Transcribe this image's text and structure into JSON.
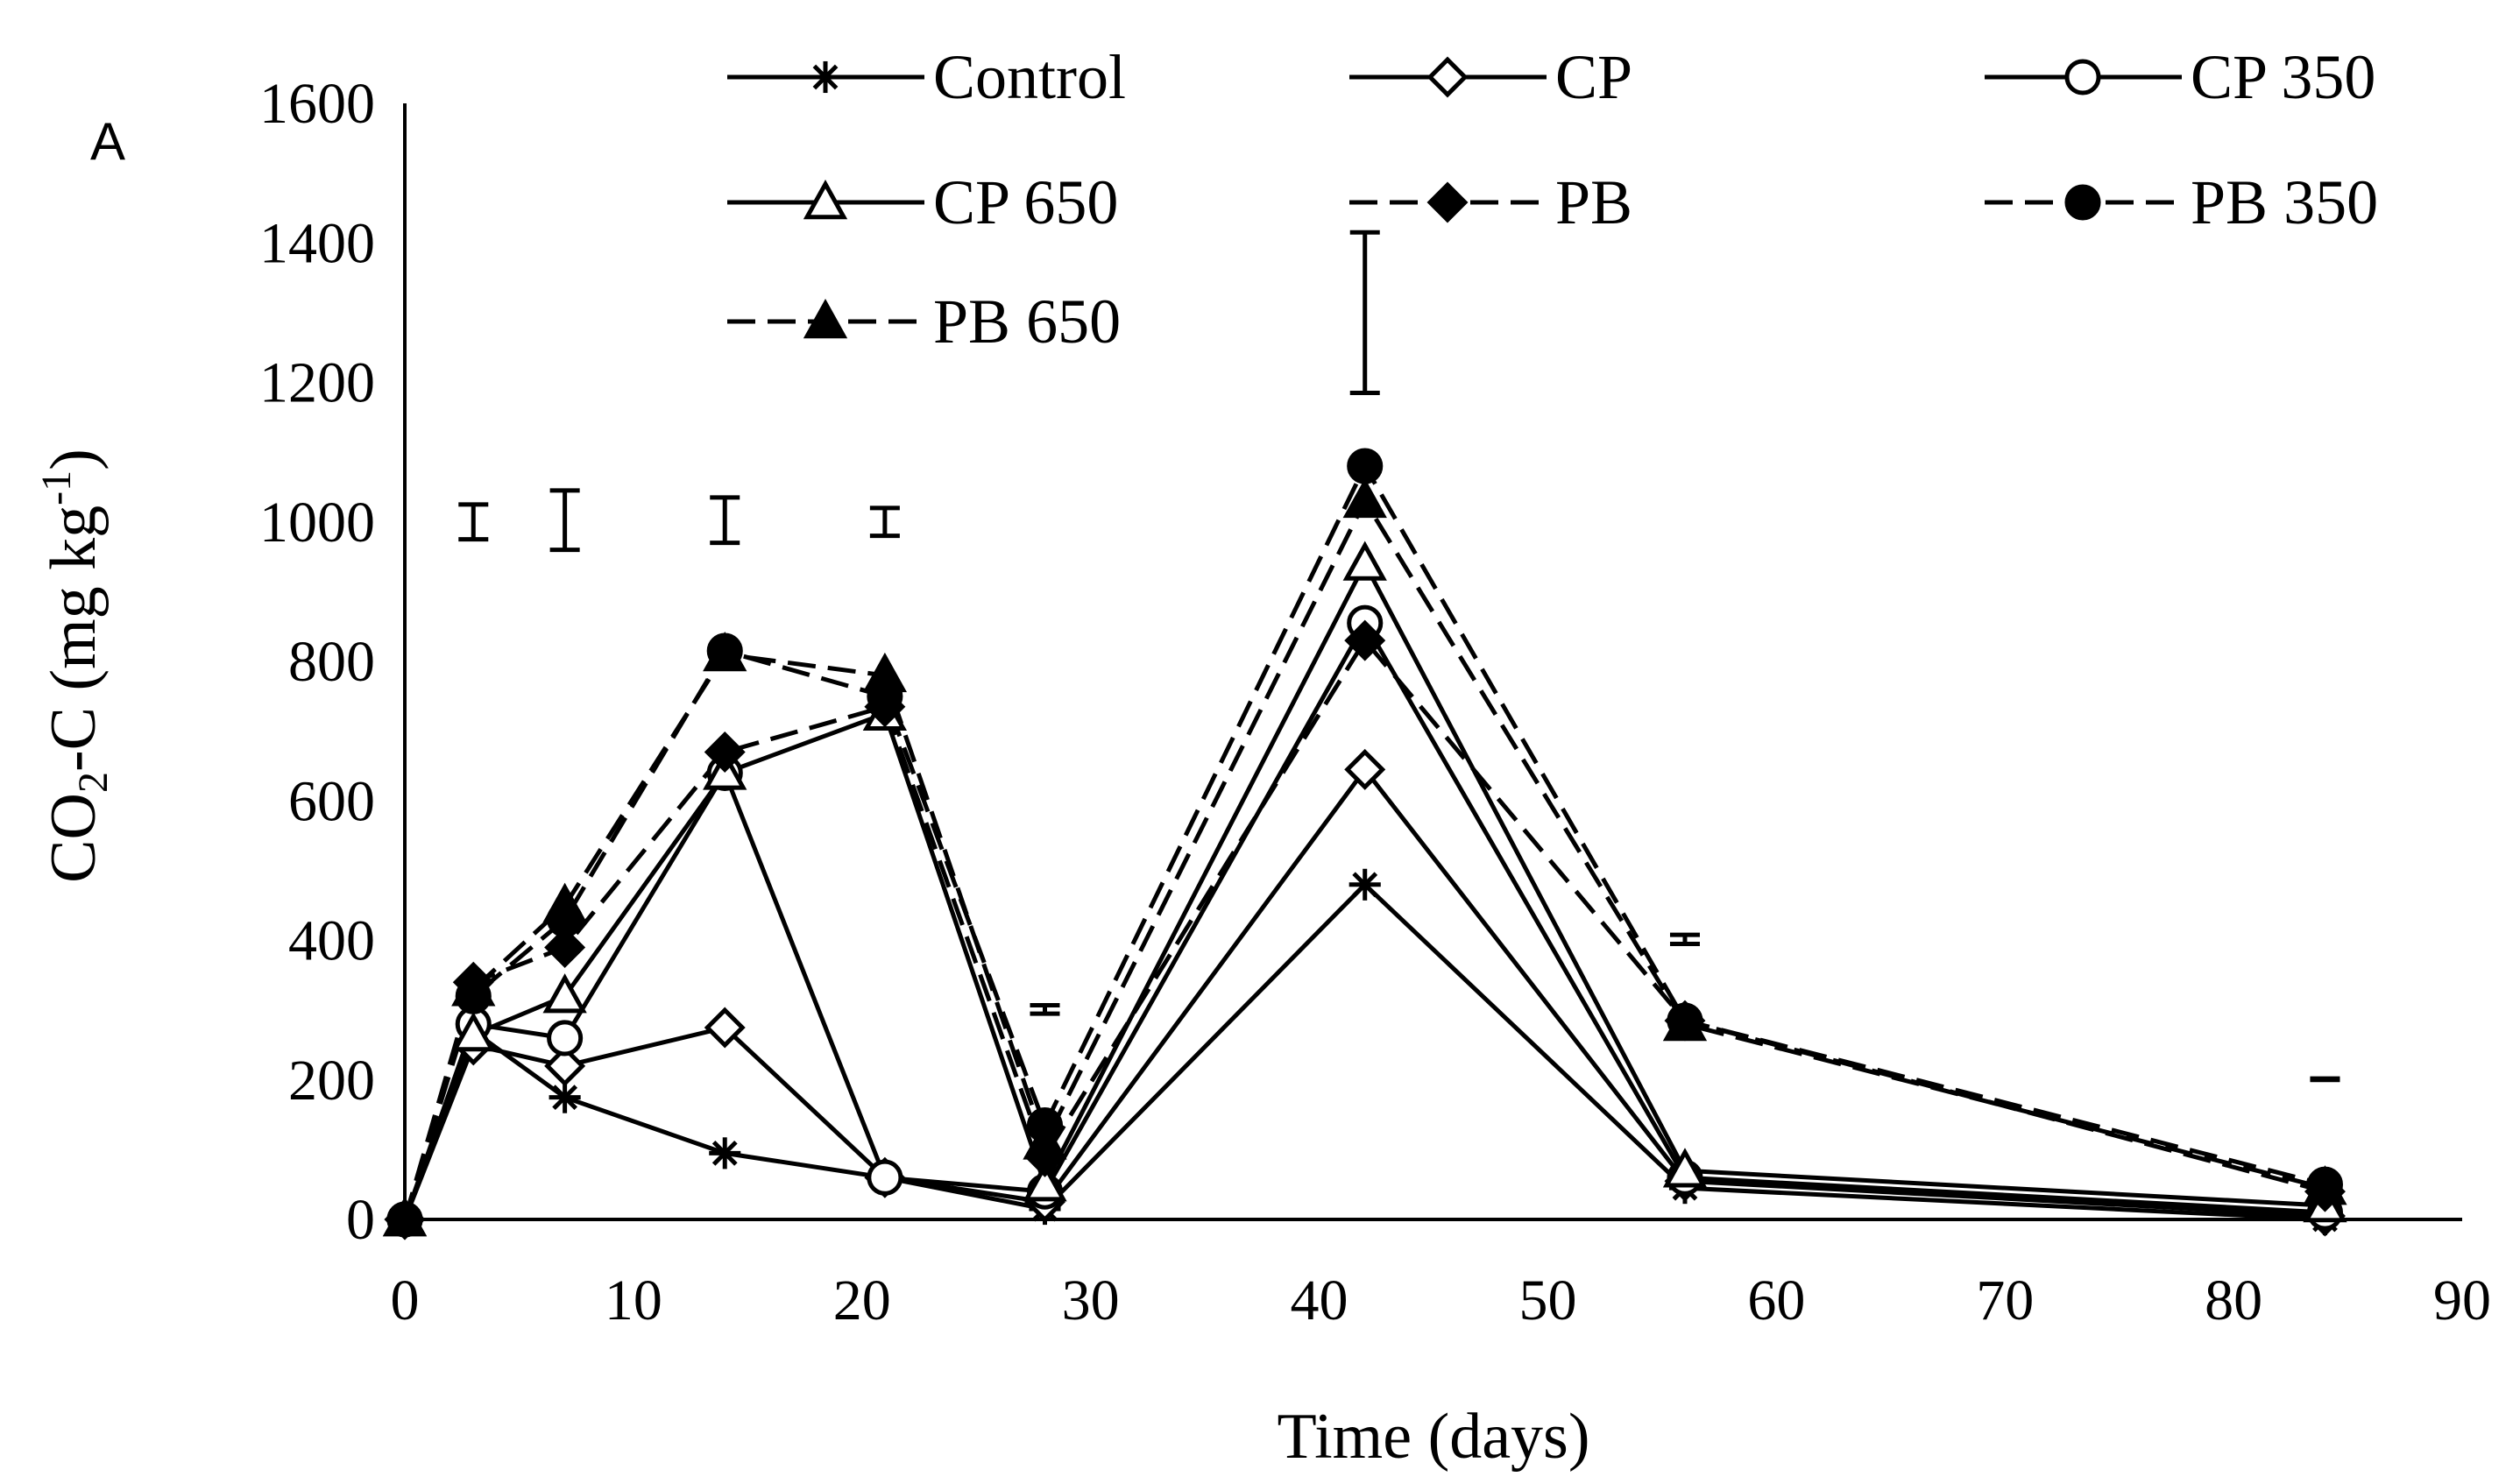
{
  "chart_data": {
    "type": "line",
    "panel_label": "A",
    "xlabel": "Time (days)",
    "ylabel": {
      "prefix": "CO",
      "sub": "2",
      "mid": "-C (mg kg",
      "sup": "-1",
      "suffix": ")"
    },
    "xlim": [
      0,
      90
    ],
    "ylim": [
      0,
      1600
    ],
    "xticks": [
      0,
      10,
      20,
      30,
      40,
      50,
      60,
      70,
      80,
      90
    ],
    "yticks": [
      0,
      200,
      400,
      600,
      800,
      1000,
      1200,
      1400,
      1600
    ],
    "x": [
      0,
      3,
      7,
      14,
      21,
      28,
      42,
      56,
      84
    ],
    "series": [
      {
        "name": "Control",
        "marker": "star",
        "dashed": false,
        "values": [
          0,
          270,
          175,
          95,
          60,
          15,
          480,
          45,
          0
        ]
      },
      {
        "name": "CP",
        "marker": "diamond-open",
        "dashed": false,
        "values": [
          0,
          250,
          220,
          275,
          60,
          25,
          645,
          55,
          5
        ]
      },
      {
        "name": "CP 350",
        "marker": "circle-open",
        "dashed": false,
        "values": [
          0,
          280,
          260,
          640,
          60,
          40,
          855,
          60,
          10
        ]
      },
      {
        "name": "CP 650",
        "marker": "triangle-open",
        "dashed": false,
        "values": [
          0,
          265,
          320,
          640,
          725,
          50,
          940,
          70,
          20
        ]
      },
      {
        "name": "PB",
        "marker": "diamond-filled",
        "dashed": true,
        "values": [
          0,
          340,
          390,
          670,
          735,
          90,
          830,
          285,
          40
        ]
      },
      {
        "name": "PB 350",
        "marker": "circle-filled",
        "dashed": true,
        "values": [
          0,
          320,
          430,
          815,
          750,
          135,
          1080,
          285,
          50
        ]
      },
      {
        "name": "PB 650",
        "marker": "triangle-filled",
        "dashed": true,
        "values": [
          0,
          330,
          450,
          810,
          780,
          110,
          1030,
          280,
          45
        ]
      }
    ],
    "error_bars": [
      {
        "x": 3,
        "low": 975,
        "high": 1025
      },
      {
        "x": 7,
        "low": 960,
        "high": 1045
      },
      {
        "x": 14,
        "low": 970,
        "high": 1035
      },
      {
        "x": 21,
        "low": 980,
        "high": 1020
      },
      {
        "x": 28,
        "low": 295,
        "high": 307
      },
      {
        "x": 42,
        "low": 1185,
        "high": 1415
      },
      {
        "x": 56,
        "low": 395,
        "high": 408
      },
      {
        "x": 84,
        "low": 200,
        "high": 202
      }
    ],
    "grid": false,
    "legend_position": "top"
  }
}
